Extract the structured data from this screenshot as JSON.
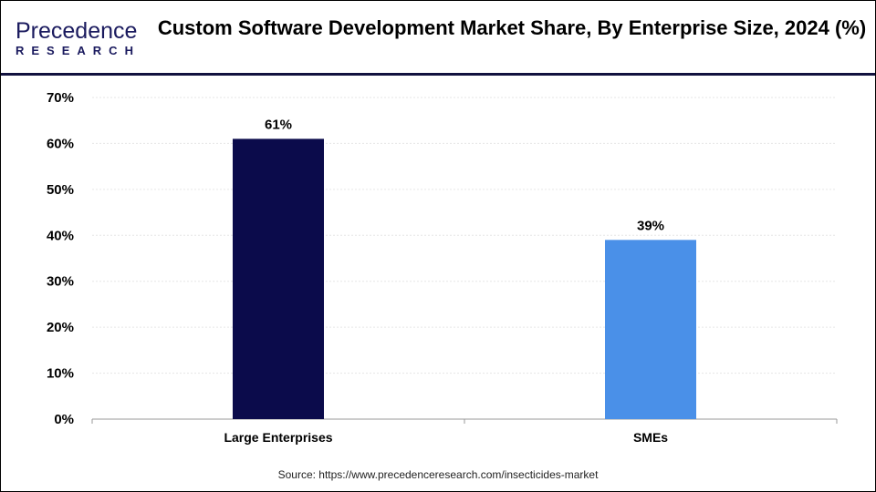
{
  "header": {
    "logo_text": "Precedence",
    "logo_subtext": "RESEARCH",
    "title": "Custom Software Development Market Share, By Enterprise Size, 2024 (%)"
  },
  "source": "Source: https://www.precedenceresearch.com/insecticides-market",
  "chart_data": {
    "type": "bar",
    "title": "Custom Software Development Market Share, By Enterprise Size, 2024 (%)",
    "categories": [
      "Large Enterprises",
      "SMEs"
    ],
    "values": [
      61,
      39
    ],
    "data_labels": [
      "61%",
      "39%"
    ],
    "colors": [
      "#0b0b4b",
      "#4a90e8"
    ],
    "ylim": [
      0,
      70
    ],
    "yticks": [
      "0%",
      "10%",
      "20%",
      "30%",
      "40%",
      "50%",
      "60%",
      "70%"
    ],
    "xlabel": "",
    "ylabel": "",
    "grid": true,
    "legend": "none"
  }
}
